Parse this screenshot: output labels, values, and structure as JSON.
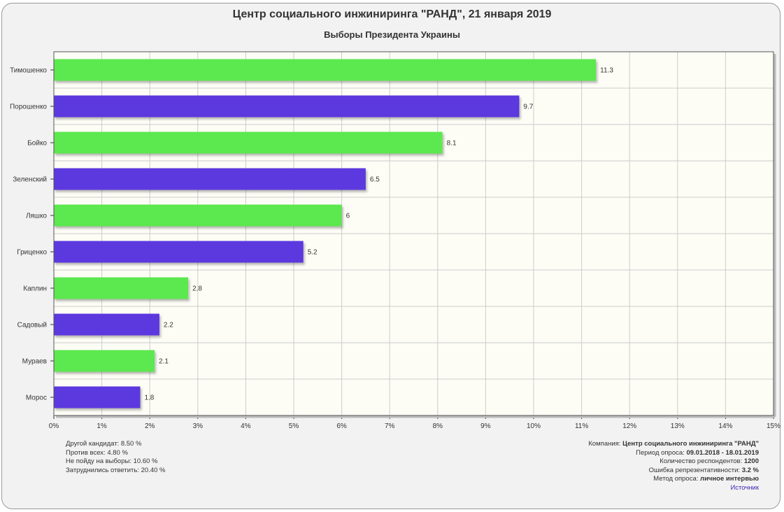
{
  "chart_data": {
    "type": "bar",
    "orientation": "horizontal",
    "title": "Центр социального инжиниринга \"РАНД\", 21 января 2019",
    "subtitle": "Выборы Президента Украины",
    "categories": [
      "Тимошенко",
      "Порошенко",
      "Бойко",
      "Зеленский",
      "Ляшко",
      "Гриценко",
      "Каплин",
      "Садовый",
      "Мураев",
      "Морос"
    ],
    "values": [
      11.3,
      9.7,
      8.1,
      6.5,
      6,
      5.2,
      2.8,
      2.2,
      2.1,
      1.8
    ],
    "value_labels": [
      "11.3",
      "9.7",
      "8.1",
      "6.5",
      "6",
      "5.2",
      "2.8",
      "2.2",
      "2.1",
      "1.8"
    ],
    "bar_colors": [
      "#5be84f",
      "#5b38df"
    ],
    "xlim": [
      0,
      15
    ],
    "xticks": [
      "0%",
      "1%",
      "2%",
      "3%",
      "4%",
      "5%",
      "6%",
      "7%",
      "8%",
      "9%",
      "10%",
      "11%",
      "12%",
      "13%",
      "14%",
      "15%"
    ],
    "grid": true,
    "legend": "none"
  },
  "notes": {
    "left": [
      "Другой кандидат: 8.50 %",
      "Против всех: 4.80 %",
      "Не пойду на выборы: 10.60 %",
      "Затруднились ответить: 20.40 %"
    ],
    "right": [
      {
        "label": "Компания: ",
        "value": "Центр социального инжиниринга \"РАНД\""
      },
      {
        "label": "Период опроса: ",
        "value": "09.01.2018 - 18.01.2019"
      },
      {
        "label": "Количество респондентов: ",
        "value": "1200"
      },
      {
        "label": "Ошибка репрезентативности: ",
        "value": "3.2 %"
      },
      {
        "label": "Метод опроса: ",
        "value": "личное интервью"
      }
    ],
    "source_link": "Источник"
  },
  "colors": {
    "plot_bg": "#fdfdf6",
    "grid": "#cccccc",
    "axis": "#333333"
  }
}
